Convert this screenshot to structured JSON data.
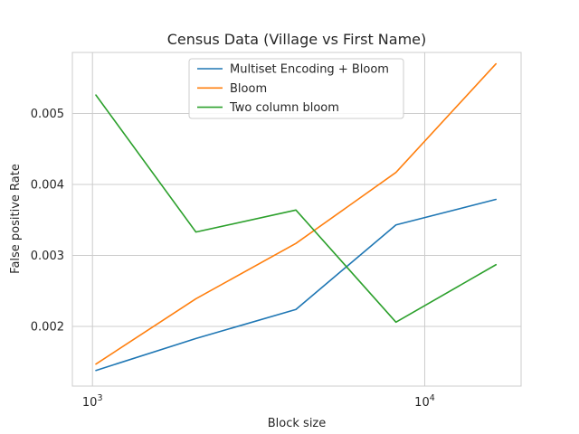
{
  "chart_data": {
    "type": "line",
    "title": "Census Data (Village vs First Name)",
    "xlabel": "Block size",
    "ylabel": "False positive Rate",
    "xscale": "log",
    "xlim": [
      870,
      19500
    ],
    "ylim": [
      0.00116,
      0.00586
    ],
    "x": [
      1024,
      2048,
      4096,
      8192,
      16384
    ],
    "xticks": [
      {
        "value": 1000,
        "base": "10",
        "exp": "3"
      },
      {
        "value": 10000,
        "base": "10",
        "exp": "4"
      }
    ],
    "yticks": [
      {
        "value": 0.002,
        "label": "0.002"
      },
      {
        "value": 0.003,
        "label": "0.003"
      },
      {
        "value": 0.004,
        "label": "0.004"
      },
      {
        "value": 0.005,
        "label": "0.005"
      }
    ],
    "grid": true,
    "legend_position": "top-center",
    "series": [
      {
        "name": "Multiset Encoding + Bloom",
        "color": "#1f77b4",
        "values": [
          0.00138,
          0.00183,
          0.00224,
          0.00343,
          0.00379
        ]
      },
      {
        "name": "Bloom",
        "color": "#ff7f0e",
        "values": [
          0.00147,
          0.00239,
          0.00317,
          0.00417,
          0.0057
        ]
      },
      {
        "name": "Two column bloom",
        "color": "#2ca02c",
        "values": [
          0.00526,
          0.00333,
          0.00364,
          0.00206,
          0.00287
        ]
      }
    ]
  }
}
